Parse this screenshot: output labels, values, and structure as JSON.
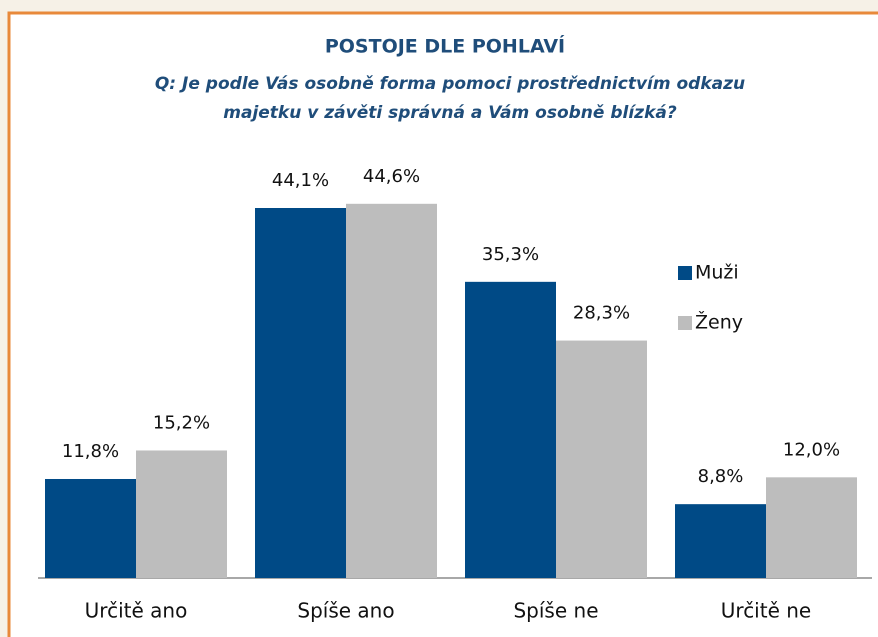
{
  "chart_data": {
    "type": "bar",
    "title": "POSTOJE DLE POHLAVÍ",
    "subtitle": [
      "Q:  Je podle Vás osobně forma pomoci prostřednictvím odkazu",
      "majetku v závěti správná a Vám osobně blízká?"
    ],
    "categories": [
      "Určitě ano",
      "Spíše ano",
      "Spíše ne",
      "Určitě ne"
    ],
    "series": [
      {
        "name": "Muži",
        "color": "#004a86",
        "values": [
          11.8,
          44.1,
          35.3,
          8.8
        ],
        "value_labels": [
          "11,8%",
          "44,1%",
          "35,3%",
          "8,8%"
        ]
      },
      {
        "name": "Ženy",
        "color": "#bdbdbd",
        "values": [
          15.2,
          44.6,
          28.3,
          12.0
        ],
        "value_labels": [
          "15,2%",
          "44,6%",
          "28,3%",
          "12,0%"
        ]
      }
    ],
    "legend": "right"
  }
}
